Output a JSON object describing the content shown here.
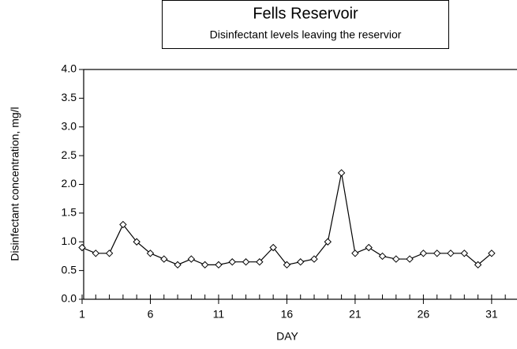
{
  "chart_data": {
    "type": "line",
    "title": "Fells Reservoir",
    "subtitle": "Disinfectant levels leaving the reservior",
    "x_label": "DAY",
    "y_label": "Disinfectant concentration, mg/l",
    "x": [
      1,
      2,
      3,
      4,
      5,
      6,
      7,
      8,
      9,
      10,
      11,
      12,
      13,
      14,
      15,
      16,
      17,
      18,
      19,
      20,
      21,
      22,
      23,
      24,
      25,
      26,
      27,
      28,
      29,
      30,
      31
    ],
    "values": [
      0.9,
      0.8,
      0.8,
      1.3,
      1.0,
      0.8,
      0.7,
      0.6,
      0.7,
      0.6,
      0.6,
      0.65,
      0.65,
      0.65,
      0.9,
      0.6,
      0.65,
      0.7,
      1.0,
      2.2,
      0.8,
      0.9,
      0.75,
      0.7,
      0.7,
      0.8,
      0.8,
      0.8,
      0.8,
      0.6,
      0.8
    ],
    "color": "#000000",
    "xlim": [
      1,
      32.8
    ],
    "xticks": [
      1,
      6,
      11,
      16,
      21,
      26,
      31
    ],
    "ylim": [
      0,
      4
    ],
    "yticks": [
      {
        "value": 0,
        "label": "0.0"
      },
      {
        "value": 0.5,
        "label": "0.5"
      },
      {
        "value": 1,
        "label": "1.0"
      },
      {
        "value": 1.5,
        "label": "1.5"
      },
      {
        "value": 2,
        "label": "2.0"
      },
      {
        "value": 2.5,
        "label": "2.5"
      },
      {
        "value": 3,
        "label": "3.0"
      },
      {
        "value": 3.5,
        "label": "3.5"
      },
      {
        "value": 4,
        "label": "4.0"
      }
    ],
    "grid": false
  }
}
